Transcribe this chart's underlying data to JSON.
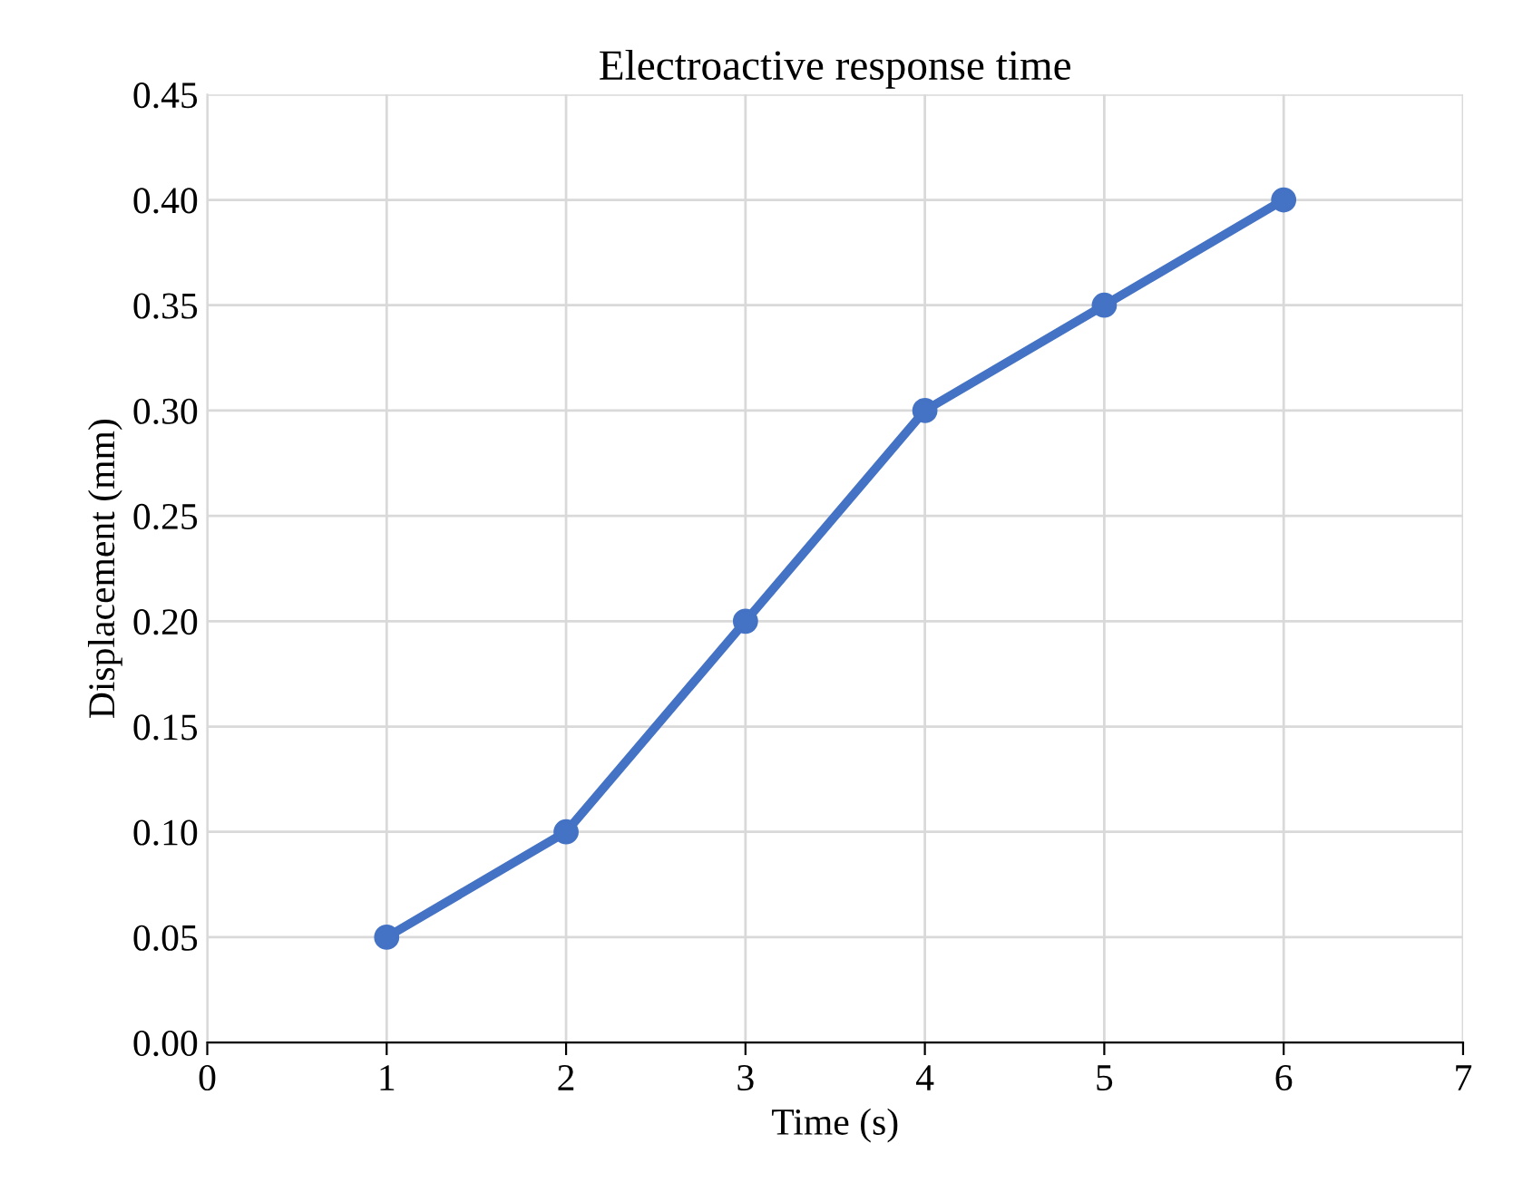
{
  "chart_data": {
    "type": "line",
    "title": "Electroactive response time",
    "xlabel": "Time (s)",
    "ylabel": "Displacement (mm)",
    "x": [
      1,
      2,
      3,
      4,
      5,
      6
    ],
    "series": [
      {
        "color": "#4472c4",
        "values": [
          0.05,
          0.1,
          0.2,
          0.3,
          0.35,
          0.4
        ]
      }
    ],
    "xlim": [
      0,
      7
    ],
    "xticks": [
      0,
      1,
      2,
      3,
      4,
      5,
      6,
      7
    ],
    "ylim": [
      0,
      0.45
    ],
    "yticks": [
      {
        "value": 0,
        "label": "0.00"
      },
      {
        "value": 0.05,
        "label": "0.05"
      },
      {
        "value": 0.1,
        "label": "0.10"
      },
      {
        "value": 0.15,
        "label": "0.15"
      },
      {
        "value": 0.2,
        "label": "0.20"
      },
      {
        "value": 0.25,
        "label": "0.25"
      },
      {
        "value": 0.3,
        "label": "0.30"
      },
      {
        "value": 0.35,
        "label": "0.35"
      },
      {
        "value": 0.4,
        "label": "0.40"
      },
      {
        "value": 0.45,
        "label": "0.45"
      }
    ],
    "grid": true,
    "marker": "circle",
    "line_style": "solid",
    "legend": false
  }
}
